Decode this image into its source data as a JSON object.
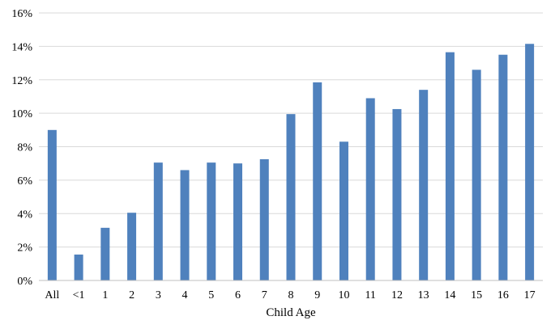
{
  "chart_data": {
    "type": "bar",
    "categories": [
      "All",
      "<1",
      "1",
      "2",
      "3",
      "4",
      "5",
      "6",
      "7",
      "8",
      "9",
      "10",
      "11",
      "12",
      "13",
      "14",
      "15",
      "16",
      "17"
    ],
    "values": [
      9.0,
      1.55,
      3.15,
      4.05,
      7.05,
      6.6,
      7.05,
      7.0,
      7.25,
      9.95,
      11.85,
      8.3,
      10.9,
      10.25,
      11.4,
      13.65,
      12.6,
      13.5,
      14.15
    ],
    "ylim": [
      0,
      16
    ],
    "yticks": [
      0,
      2,
      4,
      6,
      8,
      10,
      12,
      14,
      16
    ],
    "ytick_labels": [
      "0%",
      "2%",
      "4%",
      "6%",
      "8%",
      "10%",
      "12%",
      "14%",
      "16%"
    ],
    "xlabel": "Child Age",
    "ylabel": "",
    "title": "",
    "grid": true,
    "legend": "none",
    "bar_color": "#4f81bd"
  }
}
